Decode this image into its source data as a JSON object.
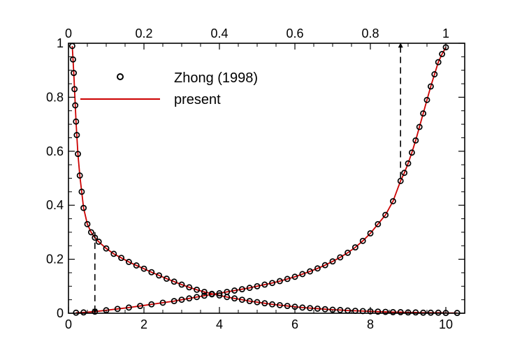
{
  "chart_data": {
    "type": "scatter",
    "title": "",
    "xlabel": "",
    "ylabel": "",
    "x_bottom": {
      "range": [
        0,
        10.5
      ],
      "ticks": [
        0,
        2,
        4,
        6,
        8,
        10
      ],
      "tick_labels": [
        "0",
        "2",
        "4",
        "6",
        "8",
        "10"
      ]
    },
    "x_top": {
      "range": [
        0,
        1.05
      ],
      "ticks": [
        0,
        0.2,
        0.4,
        0.6,
        0.8,
        1
      ],
      "tick_labels": [
        "0",
        "0.2",
        "0.4",
        "0.6",
        "0.8",
        "1"
      ]
    },
    "y": {
      "range": [
        0,
        1
      ],
      "ticks": [
        0,
        0.2,
        0.4,
        0.6,
        0.8,
        1
      ],
      "tick_labels": [
        "0",
        "0.2",
        "0.4",
        "0.6",
        "0.8",
        "1"
      ]
    },
    "grid": false,
    "legend": {
      "position": "top-left",
      "entries": [
        {
          "label": "Zhong (1998)",
          "marker": "open-circle",
          "color": "#000000"
        },
        {
          "label": "present",
          "marker": "line",
          "color": "#cc0000"
        }
      ]
    },
    "series": [
      {
        "name": "Zhong (1998)",
        "axis": "bottom",
        "curve": "decaying",
        "marker": "open-circle",
        "x": [
          0.1,
          0.12,
          0.14,
          0.16,
          0.18,
          0.2,
          0.22,
          0.25,
          0.3,
          0.35,
          0.4,
          0.5,
          0.6,
          0.7,
          0.8,
          1.0,
          1.2,
          1.4,
          1.6,
          1.8,
          2.0,
          2.2,
          2.4,
          2.6,
          2.8,
          3.0,
          3.2,
          3.4,
          3.6,
          3.8,
          4.0,
          4.2,
          4.4,
          4.6,
          4.8,
          5.0,
          5.2,
          5.4,
          5.6,
          5.8,
          6.0,
          6.2,
          6.4,
          6.6,
          6.8,
          7.0,
          7.2,
          7.4,
          7.6,
          7.8,
          8.0,
          8.2,
          8.4,
          8.6,
          8.8,
          9.0,
          9.2,
          9.4,
          9.6,
          9.8,
          10.0,
          10.3
        ],
        "y": [
          0.99,
          0.94,
          0.89,
          0.83,
          0.77,
          0.71,
          0.66,
          0.59,
          0.51,
          0.45,
          0.39,
          0.33,
          0.3,
          0.28,
          0.265,
          0.24,
          0.22,
          0.205,
          0.19,
          0.177,
          0.165,
          0.152,
          0.14,
          0.128,
          0.117,
          0.106,
          0.096,
          0.087,
          0.079,
          0.072,
          0.066,
          0.06,
          0.055,
          0.05,
          0.045,
          0.041,
          0.037,
          0.033,
          0.03,
          0.027,
          0.024,
          0.021,
          0.019,
          0.017,
          0.015,
          0.013,
          0.012,
          0.01,
          0.009,
          0.008,
          0.007,
          0.006,
          0.005,
          0.004,
          0.004,
          0.003,
          0.003,
          0.002,
          0.002,
          0.002,
          0.001,
          0.001
        ]
      },
      {
        "name": "Zhong (1998)",
        "axis": "top",
        "curve": "rising",
        "marker": "open-circle",
        "x": [
          0.02,
          0.04,
          0.07,
          0.1,
          0.13,
          0.16,
          0.19,
          0.22,
          0.25,
          0.28,
          0.3,
          0.32,
          0.34,
          0.36,
          0.38,
          0.4,
          0.42,
          0.44,
          0.46,
          0.48,
          0.5,
          0.52,
          0.54,
          0.56,
          0.58,
          0.6,
          0.62,
          0.64,
          0.66,
          0.68,
          0.7,
          0.72,
          0.74,
          0.76,
          0.78,
          0.8,
          0.82,
          0.84,
          0.86,
          0.88,
          0.89,
          0.9,
          0.91,
          0.92,
          0.93,
          0.94,
          0.95,
          0.96,
          0.97,
          0.98,
          0.99,
          1.0
        ],
        "y": [
          0.002,
          0.003,
          0.006,
          0.011,
          0.016,
          0.021,
          0.027,
          0.033,
          0.039,
          0.045,
          0.05,
          0.055,
          0.06,
          0.065,
          0.07,
          0.074,
          0.079,
          0.084,
          0.089,
          0.094,
          0.1,
          0.106,
          0.112,
          0.119,
          0.127,
          0.135,
          0.145,
          0.155,
          0.166,
          0.178,
          0.192,
          0.207,
          0.224,
          0.244,
          0.268,
          0.296,
          0.33,
          0.364,
          0.415,
          0.49,
          0.52,
          0.555,
          0.595,
          0.64,
          0.69,
          0.74,
          0.79,
          0.84,
          0.885,
          0.93,
          0.96,
          0.985
        ]
      },
      {
        "name": "present",
        "axis": "bottom",
        "curve": "decaying",
        "marker": "line",
        "x": [
          0.1,
          0.12,
          0.14,
          0.16,
          0.18,
          0.2,
          0.22,
          0.25,
          0.3,
          0.35,
          0.4,
          0.5,
          0.6,
          0.7,
          0.8,
          1.0,
          1.2,
          1.4,
          1.6,
          1.8,
          2.0,
          2.2,
          2.4,
          2.6,
          2.8,
          3.0,
          3.2,
          3.4,
          3.6,
          3.8,
          4.0,
          4.2,
          4.4,
          4.6,
          4.8,
          5.0,
          5.2,
          5.4,
          5.6,
          5.8,
          6.0,
          6.2,
          6.4,
          6.6,
          6.8,
          7.0,
          7.2,
          7.4,
          7.6,
          7.8,
          8.0,
          8.2,
          8.4,
          8.6,
          8.8,
          9.0,
          9.2,
          9.4,
          9.6,
          9.8,
          10.0,
          10.3
        ],
        "y": [
          0.99,
          0.94,
          0.89,
          0.83,
          0.77,
          0.71,
          0.66,
          0.59,
          0.51,
          0.45,
          0.39,
          0.33,
          0.3,
          0.28,
          0.265,
          0.24,
          0.22,
          0.205,
          0.19,
          0.177,
          0.165,
          0.152,
          0.14,
          0.128,
          0.117,
          0.106,
          0.096,
          0.087,
          0.079,
          0.072,
          0.066,
          0.06,
          0.055,
          0.05,
          0.045,
          0.041,
          0.037,
          0.033,
          0.03,
          0.027,
          0.024,
          0.021,
          0.019,
          0.017,
          0.015,
          0.013,
          0.012,
          0.01,
          0.009,
          0.008,
          0.007,
          0.006,
          0.005,
          0.004,
          0.004,
          0.003,
          0.003,
          0.002,
          0.002,
          0.002,
          0.001,
          0.001
        ]
      },
      {
        "name": "present",
        "axis": "top",
        "curve": "rising",
        "marker": "line",
        "x": [
          0.02,
          0.04,
          0.07,
          0.1,
          0.13,
          0.16,
          0.19,
          0.22,
          0.25,
          0.28,
          0.3,
          0.32,
          0.34,
          0.36,
          0.38,
          0.4,
          0.42,
          0.44,
          0.46,
          0.48,
          0.5,
          0.52,
          0.54,
          0.56,
          0.58,
          0.6,
          0.62,
          0.64,
          0.66,
          0.68,
          0.7,
          0.72,
          0.74,
          0.76,
          0.78,
          0.8,
          0.82,
          0.84,
          0.86,
          0.88,
          0.89,
          0.9,
          0.91,
          0.92,
          0.93,
          0.94,
          0.95,
          0.96,
          0.97,
          0.98,
          0.99,
          1.0
        ],
        "y": [
          0.002,
          0.003,
          0.006,
          0.011,
          0.016,
          0.021,
          0.027,
          0.033,
          0.039,
          0.045,
          0.05,
          0.055,
          0.06,
          0.065,
          0.07,
          0.074,
          0.079,
          0.084,
          0.089,
          0.094,
          0.1,
          0.106,
          0.112,
          0.119,
          0.127,
          0.135,
          0.145,
          0.155,
          0.166,
          0.178,
          0.192,
          0.207,
          0.224,
          0.244,
          0.268,
          0.296,
          0.33,
          0.364,
          0.415,
          0.49,
          0.52,
          0.555,
          0.595,
          0.64,
          0.69,
          0.74,
          0.79,
          0.84,
          0.885,
          0.93,
          0.96,
          0.985
        ]
      }
    ],
    "annotations": [
      {
        "kind": "dashed-arrow",
        "axis": "bottom",
        "from": {
          "x": 0.7,
          "y": 0.3
        },
        "to": {
          "x": 0.7,
          "y": 0.0
        }
      },
      {
        "kind": "dashed-arrow",
        "axis": "bottom",
        "from": {
          "x": 8.8,
          "y": 0.5
        },
        "to": {
          "x": 8.8,
          "y": 1.0
        }
      }
    ]
  }
}
